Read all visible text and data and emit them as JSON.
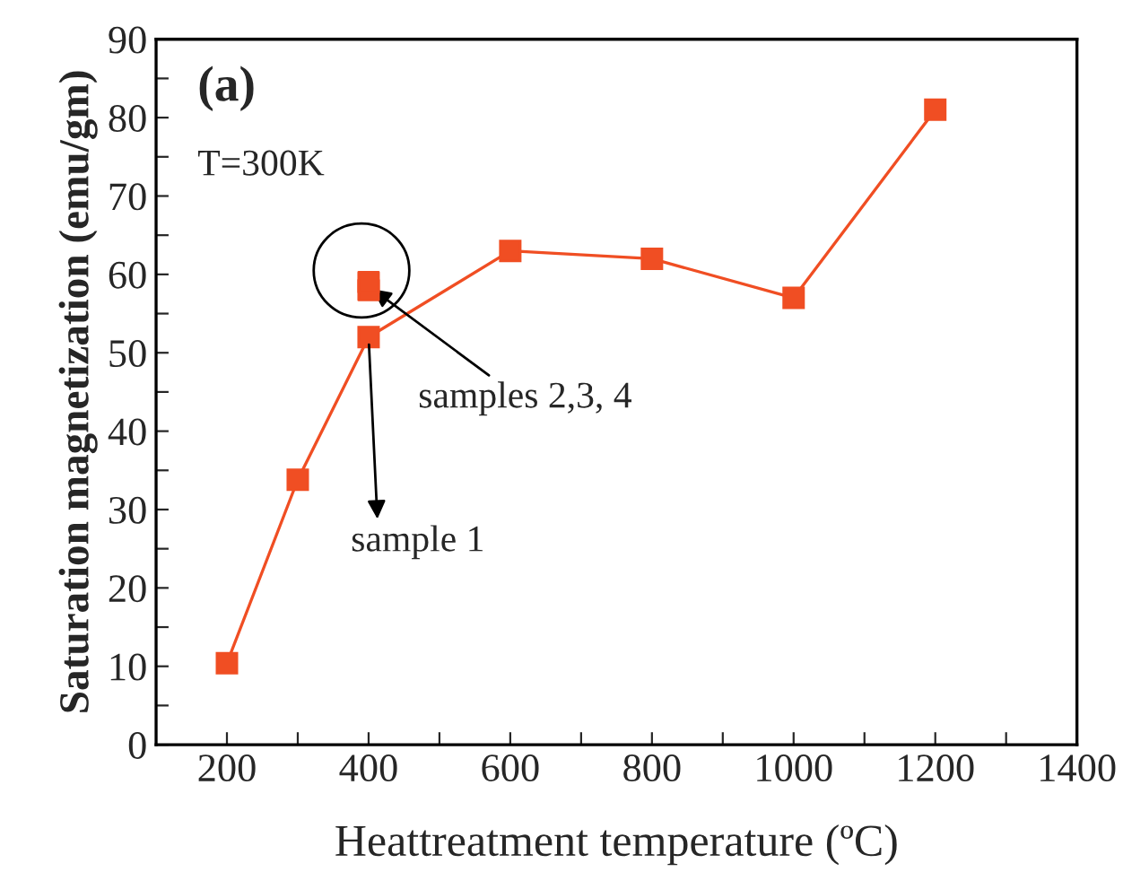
{
  "chart_data": {
    "type": "line",
    "xlabel": "Heattreatment temperature (ºC)",
    "ylabel": "Saturation magnetization (emu/gm)",
    "x": [
      200,
      300,
      400,
      600,
      800,
      1000,
      1200
    ],
    "series": [
      {
        "color": "#f04e23",
        "values": [
          10.4,
          33.8,
          52,
          63,
          62,
          57,
          81
        ]
      },
      {
        "type": "scatter",
        "color": "#f04e23",
        "x": [
          400,
          400
        ],
        "values": [
          58,
          59
        ]
      }
    ],
    "marker": "square",
    "line_style": "solid",
    "grid": false,
    "legend": false,
    "xlim": [
      100,
      1400
    ],
    "ylim": [
      0,
      90
    ],
    "xticks": [
      200,
      {
        "value": 300,
        "label": null
      },
      400,
      {
        "value": 500,
        "label": null
      },
      600,
      {
        "value": 700,
        "label": null
      },
      800,
      {
        "value": 900,
        "label": null
      },
      1000,
      {
        "value": 1100,
        "label": null
      },
      1200,
      {
        "value": 1300,
        "label": null
      },
      1400
    ],
    "yticks": [
      0,
      {
        "value": 5,
        "label": null
      },
      10,
      {
        "value": 15,
        "label": null
      },
      20,
      {
        "value": 25,
        "label": null
      },
      30,
      {
        "value": 35,
        "label": null
      },
      40,
      {
        "value": 45,
        "label": null
      },
      50,
      {
        "value": 55,
        "label": null
      },
      60,
      {
        "value": 65,
        "label": null
      },
      70,
      {
        "value": 75,
        "label": null
      },
      80,
      {
        "value": 85,
        "label": null
      },
      90
    ],
    "annotations": [
      "(a)",
      "T=300K",
      {
        "text": "samples 2,3, 4",
        "x": 400,
        "y": 58.5
      },
      {
        "text": "sample 1",
        "x": 400,
        "y": 52
      }
    ]
  }
}
